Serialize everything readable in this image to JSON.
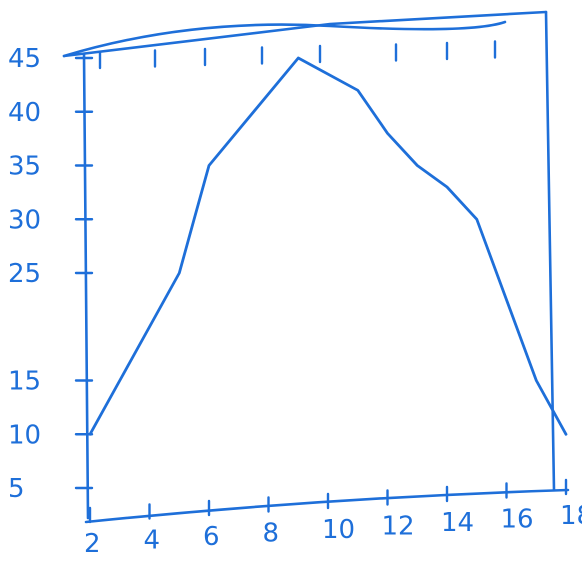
{
  "chart_data": {
    "type": "line",
    "title": "",
    "xlabel": "",
    "ylabel": "",
    "x_ticks": [
      "2",
      "4",
      "6",
      "8",
      "10",
      "12",
      "14",
      "16",
      "18"
    ],
    "y_ticks": [
      "5",
      "10",
      "15",
      "25",
      "30",
      "35",
      "40",
      "45"
    ],
    "xlim": [
      2,
      18
    ],
    "ylim": [
      5,
      45
    ],
    "grid": false,
    "series": [
      {
        "x": [
          2,
          3,
          5,
          5.5,
          6,
          7.5,
          9,
          11,
          12,
          13,
          14,
          15,
          17,
          18
        ],
        "y": [
          10,
          15,
          25,
          30,
          35,
          40,
          45,
          42,
          38,
          35,
          33,
          30,
          15,
          10
        ],
        "color": "#1e6fd9"
      }
    ],
    "color": "#1e6fd9"
  }
}
